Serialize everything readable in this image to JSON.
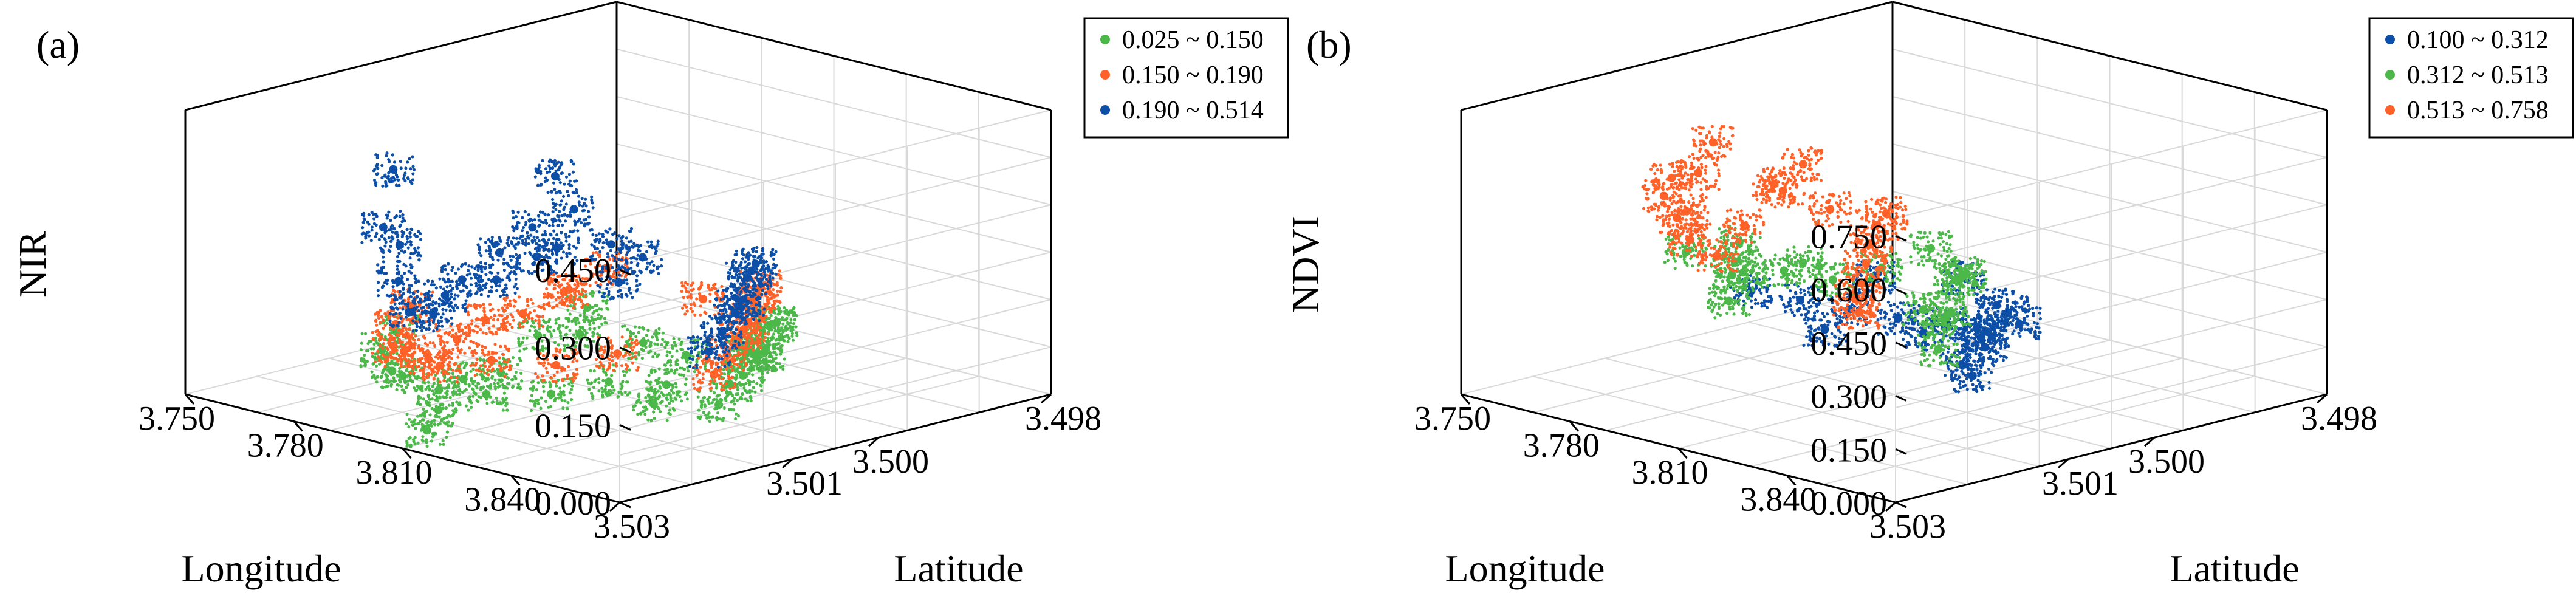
{
  "figure": {
    "panels": [
      "(a)",
      "(b)"
    ]
  },
  "chart_data": [
    {
      "type": "scatter",
      "panel_label": "(a)",
      "projection": "3d",
      "xlabel": "Longitude",
      "ylabel": "Latitude",
      "zlabel": "NIR",
      "x_ticks": [
        "3.750",
        "3.780",
        "3.810",
        "3.840"
      ],
      "y_ticks": [
        "3.498",
        "3.500",
        "3.501",
        "3.503"
      ],
      "z_ticks": [
        "0.000",
        "0.150",
        "0.300",
        "0.450"
      ],
      "xlim": [
        3.75,
        3.87
      ],
      "ylim": [
        3.498,
        3.503
      ],
      "zlim": [
        0,
        0.55
      ],
      "grid": true,
      "legend_position": "top-right",
      "series": [
        {
          "name": "0.025 ~ 0.150",
          "color": "#4cb84a",
          "points": [
            [
              3.812,
              3.5028,
              0.03
            ],
            [
              3.808,
              3.5025,
              0.05
            ],
            [
              3.803,
              3.502,
              0.08
            ],
            [
              3.799,
              3.5014,
              0.06
            ],
            [
              3.795,
              3.5008,
              0.1
            ],
            [
              3.792,
              3.5001,
              0.12
            ],
            [
              3.818,
              3.499,
              0.09
            ],
            [
              3.824,
              3.4993,
              0.11
            ],
            [
              3.83,
              3.4996,
              0.13
            ],
            [
              3.836,
              3.4999,
              0.1
            ],
            [
              3.842,
              3.5002,
              0.12
            ],
            [
              3.848,
              3.5005,
              0.14
            ],
            [
              3.854,
              3.5009,
              0.13
            ],
            [
              3.86,
              3.5013,
              0.14
            ],
            [
              3.864,
              3.5016,
              0.12
            ],
            [
              3.785,
              3.502,
              0.14
            ],
            [
              3.79,
              3.5024,
              0.13
            ],
            [
              3.8,
              3.5027,
              0.12
            ],
            [
              3.81,
              3.503,
              0.14
            ],
            [
              3.82,
              3.503,
              0.13
            ],
            [
              3.826,
              3.5027,
              0.12
            ],
            [
              3.832,
              3.5022,
              0.11
            ],
            [
              3.836,
              3.5017,
              0.12
            ],
            [
              3.815,
              3.4992,
              0.04
            ],
            [
              3.822,
              3.4995,
              0.06
            ],
            [
              3.805,
              3.5,
              0.07
            ],
            [
              3.812,
              3.4998,
              0.05
            ],
            [
              3.797,
              3.5004,
              0.09
            ],
            [
              3.84,
              3.5012,
              0.1
            ],
            [
              3.846,
              3.5016,
              0.09
            ]
          ]
        },
        {
          "name": "0.150 ~ 0.190",
          "color": "#ff6229",
          "points": [
            [
              3.81,
              3.5027,
              0.16
            ],
            [
              3.806,
              3.5022,
              0.17
            ],
            [
              3.802,
              3.5017,
              0.18
            ],
            [
              3.798,
              3.5011,
              0.16
            ],
            [
              3.794,
              3.5004,
              0.17
            ],
            [
              3.79,
              3.4998,
              0.18
            ],
            [
              3.816,
              3.4991,
              0.16
            ],
            [
              3.822,
              3.4994,
              0.17
            ],
            [
              3.828,
              3.4997,
              0.18
            ],
            [
              3.834,
              3.5,
              0.16
            ],
            [
              3.84,
              3.5003,
              0.17
            ],
            [
              3.846,
              3.5006,
              0.18
            ],
            [
              3.852,
              3.501,
              0.17
            ],
            [
              3.858,
              3.5014,
              0.16
            ],
            [
              3.784,
              3.5018,
              0.18
            ],
            [
              3.789,
              3.5022,
              0.17
            ],
            [
              3.798,
              3.5026,
              0.16
            ],
            [
              3.808,
              3.5029,
              0.18
            ],
            [
              3.818,
              3.5029,
              0.17
            ],
            [
              3.825,
              3.5026,
              0.18
            ],
            [
              3.831,
              3.5021,
              0.16
            ],
            [
              3.836,
              3.5016,
              0.17
            ],
            [
              3.8,
              3.5007,
              0.19
            ],
            [
              3.812,
              3.4996,
              0.15
            ]
          ]
        },
        {
          "name": "0.190 ~ 0.514",
          "color": "#0d4fa6",
          "points": [
            [
              3.809,
              3.5026,
              0.24
            ],
            [
              3.805,
              3.5021,
              0.28
            ],
            [
              3.801,
              3.5015,
              0.3
            ],
            [
              3.797,
              3.5009,
              0.26
            ],
            [
              3.793,
              3.5003,
              0.32
            ],
            [
              3.789,
              3.4997,
              0.22
            ],
            [
              3.817,
              3.4992,
              0.21
            ],
            [
              3.823,
              3.4995,
              0.22
            ],
            [
              3.829,
              3.4998,
              0.23
            ],
            [
              3.835,
              3.5001,
              0.21
            ],
            [
              3.841,
              3.5004,
              0.22
            ],
            [
              3.847,
              3.5007,
              0.23
            ],
            [
              3.853,
              3.5011,
              0.22
            ],
            [
              3.859,
              3.5015,
              0.21
            ],
            [
              3.783,
              3.5019,
              0.3
            ],
            [
              3.788,
              3.5023,
              0.36
            ],
            [
              3.786,
              3.5021,
              0.46
            ],
            [
              3.797,
              3.5025,
              0.28
            ],
            [
              3.807,
              3.5028,
              0.25
            ],
            [
              3.817,
              3.5028,
              0.3
            ],
            [
              3.824,
              3.5025,
              0.33
            ],
            [
              3.829,
              3.502,
              0.38
            ],
            [
              3.834,
              3.5015,
              0.3
            ],
            [
              3.795,
              3.5006,
              0.4
            ],
            [
              3.803,
              3.5012,
              0.34
            ],
            [
              3.812,
              3.5003,
              0.26
            ]
          ]
        }
      ]
    },
    {
      "type": "scatter",
      "panel_label": "(b)",
      "projection": "3d",
      "xlabel": "Longitude",
      "ylabel": "Latitude",
      "zlabel": "NDVI",
      "x_ticks": [
        "3.750",
        "3.780",
        "3.810",
        "3.840"
      ],
      "y_ticks": [
        "3.498",
        "3.500",
        "3.501",
        "3.503"
      ],
      "z_ticks": [
        "0.000",
        "0.150",
        "0.300",
        "0.450",
        "0.600",
        "0.750"
      ],
      "xlim": [
        3.75,
        3.87
      ],
      "ylim": [
        3.498,
        3.503
      ],
      "zlim": [
        0,
        0.8
      ],
      "grid": true,
      "legend_position": "top-right",
      "series": [
        {
          "name": "0.100 ~ 0.312",
          "color": "#0d4fa6",
          "points": [
            [
              3.812,
              3.4995,
              0.12
            ],
            [
              3.808,
              3.4998,
              0.15
            ],
            [
              3.804,
              3.5002,
              0.18
            ],
            [
              3.8,
              3.5006,
              0.22
            ],
            [
              3.796,
              3.501,
              0.26
            ],
            [
              3.792,
              3.5014,
              0.3
            ],
            [
              3.816,
              3.4993,
              0.14
            ],
            [
              3.82,
              3.4996,
              0.2
            ],
            [
              3.824,
              3.4999,
              0.25
            ],
            [
              3.828,
              3.5002,
              0.16
            ],
            [
              3.834,
              3.5005,
              0.22
            ],
            [
              3.84,
              3.5008,
              0.28
            ],
            [
              3.846,
              3.5011,
              0.18
            ],
            [
              3.85,
              3.5014,
              0.24
            ],
            [
              3.806,
              3.5,
              0.13
            ],
            [
              3.81,
              3.4997,
              0.28
            ],
            [
              3.802,
              3.5004,
              0.3
            ],
            [
              3.798,
              3.5008,
              0.17
            ]
          ]
        },
        {
          "name": "0.312 ~ 0.513",
          "color": "#4cb84a",
          "points": [
            [
              3.805,
              3.501,
              0.34
            ],
            [
              3.801,
              3.5014,
              0.38
            ],
            [
              3.797,
              3.5018,
              0.42
            ],
            [
              3.793,
              3.5022,
              0.46
            ],
            [
              3.809,
              3.5006,
              0.36
            ],
            [
              3.813,
              3.5002,
              0.4
            ],
            [
              3.818,
              3.5,
              0.33
            ],
            [
              3.826,
              3.5004,
              0.36
            ],
            [
              3.834,
              3.5008,
              0.4
            ],
            [
              3.842,
              3.5012,
              0.35
            ],
            [
              3.85,
              3.5016,
              0.38
            ],
            [
              3.858,
              3.502,
              0.34
            ],
            [
              3.816,
              3.5025,
              0.48
            ],
            [
              3.82,
              3.5028,
              0.5
            ],
            [
              3.824,
              3.503,
              0.45
            ],
            [
              3.811,
              3.5016,
              0.44
            ],
            [
              3.803,
              3.502,
              0.5
            ],
            [
              3.83,
              3.501,
              0.32
            ]
          ]
        },
        {
          "name": "0.513 ~ 0.758",
          "color": "#ff6229",
          "points": [
            [
              3.798,
              3.5024,
              0.6
            ],
            [
              3.794,
              3.5021,
              0.68
            ],
            [
              3.791,
              3.5018,
              0.74
            ],
            [
              3.801,
              3.5027,
              0.72
            ],
            [
              3.806,
              3.503,
              0.7
            ],
            [
              3.812,
              3.5031,
              0.66
            ],
            [
              3.818,
              3.5032,
              0.62
            ],
            [
              3.823,
              3.5031,
              0.58
            ],
            [
              3.803,
              3.5016,
              0.64
            ],
            [
              3.809,
              3.5012,
              0.56
            ],
            [
              3.815,
              3.5008,
              0.54
            ],
            [
              3.822,
              3.5012,
              0.55
            ],
            [
              3.83,
              3.5016,
              0.54
            ],
            [
              3.838,
              3.502,
              0.53
            ],
            [
              3.846,
              3.5024,
              0.52
            ],
            [
              3.854,
              3.5028,
              0.52
            ],
            [
              3.86,
              3.503,
              0.51
            ],
            [
              3.796,
              3.5012,
              0.58
            ],
            [
              3.792,
              3.5008,
              0.62
            ],
            [
              3.814,
              3.5024,
              0.6
            ]
          ]
        }
      ]
    }
  ]
}
